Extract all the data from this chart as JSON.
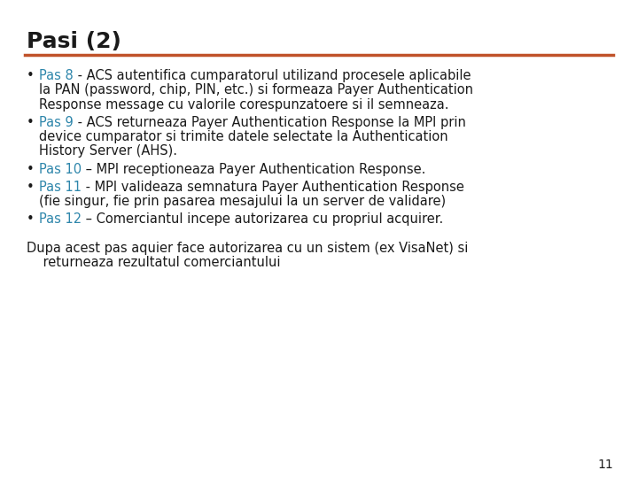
{
  "title": "Pasi (2)",
  "title_color": "#1a1a1a",
  "title_fontsize": 18,
  "separator_color": "#C0522A",
  "background_color": "#FFFFFF",
  "blue_color": "#2E86AB",
  "text_color": "#1a1a1a",
  "fontsize": 10.5,
  "footer_fontsize": 10.5,
  "page_number": "11",
  "bullets": [
    {
      "label": "Pas 8",
      "lines": [
        " - ACS autentifica cumparatorul utilizand procesele aplicabile",
        "la PAN (password, chip, PIN, etc.) si formeaza Payer Authentication",
        "Response message cu valorile corespunzatoere si il semneaza."
      ]
    },
    {
      "label": "Pas 9",
      "lines": [
        " - ACS returneaza Payer Authentication Response la MPI prin",
        "device cumparator si trimite datele selectate la Authentication",
        "History Server (AHS)."
      ]
    },
    {
      "label": "Pas 10",
      "lines": [
        " – MPI receptioneaza Payer Authentication Response."
      ]
    },
    {
      "label": "Pas 11",
      "lines": [
        " - MPI valideaza semnatura Payer Authentication Response",
        "(fie singur, fie prin pasarea mesajului la un server de validare)"
      ]
    },
    {
      "label": "Pas 12",
      "lines": [
        " – Comerciantul incepe autorizarea cu propriul acquirer."
      ]
    }
  ],
  "footer_lines": [
    "Dupa acest pas aquier face autorizarea cu un sistem (ex VisaNet) si",
    "    returneaza rezultatul comerciantului"
  ]
}
